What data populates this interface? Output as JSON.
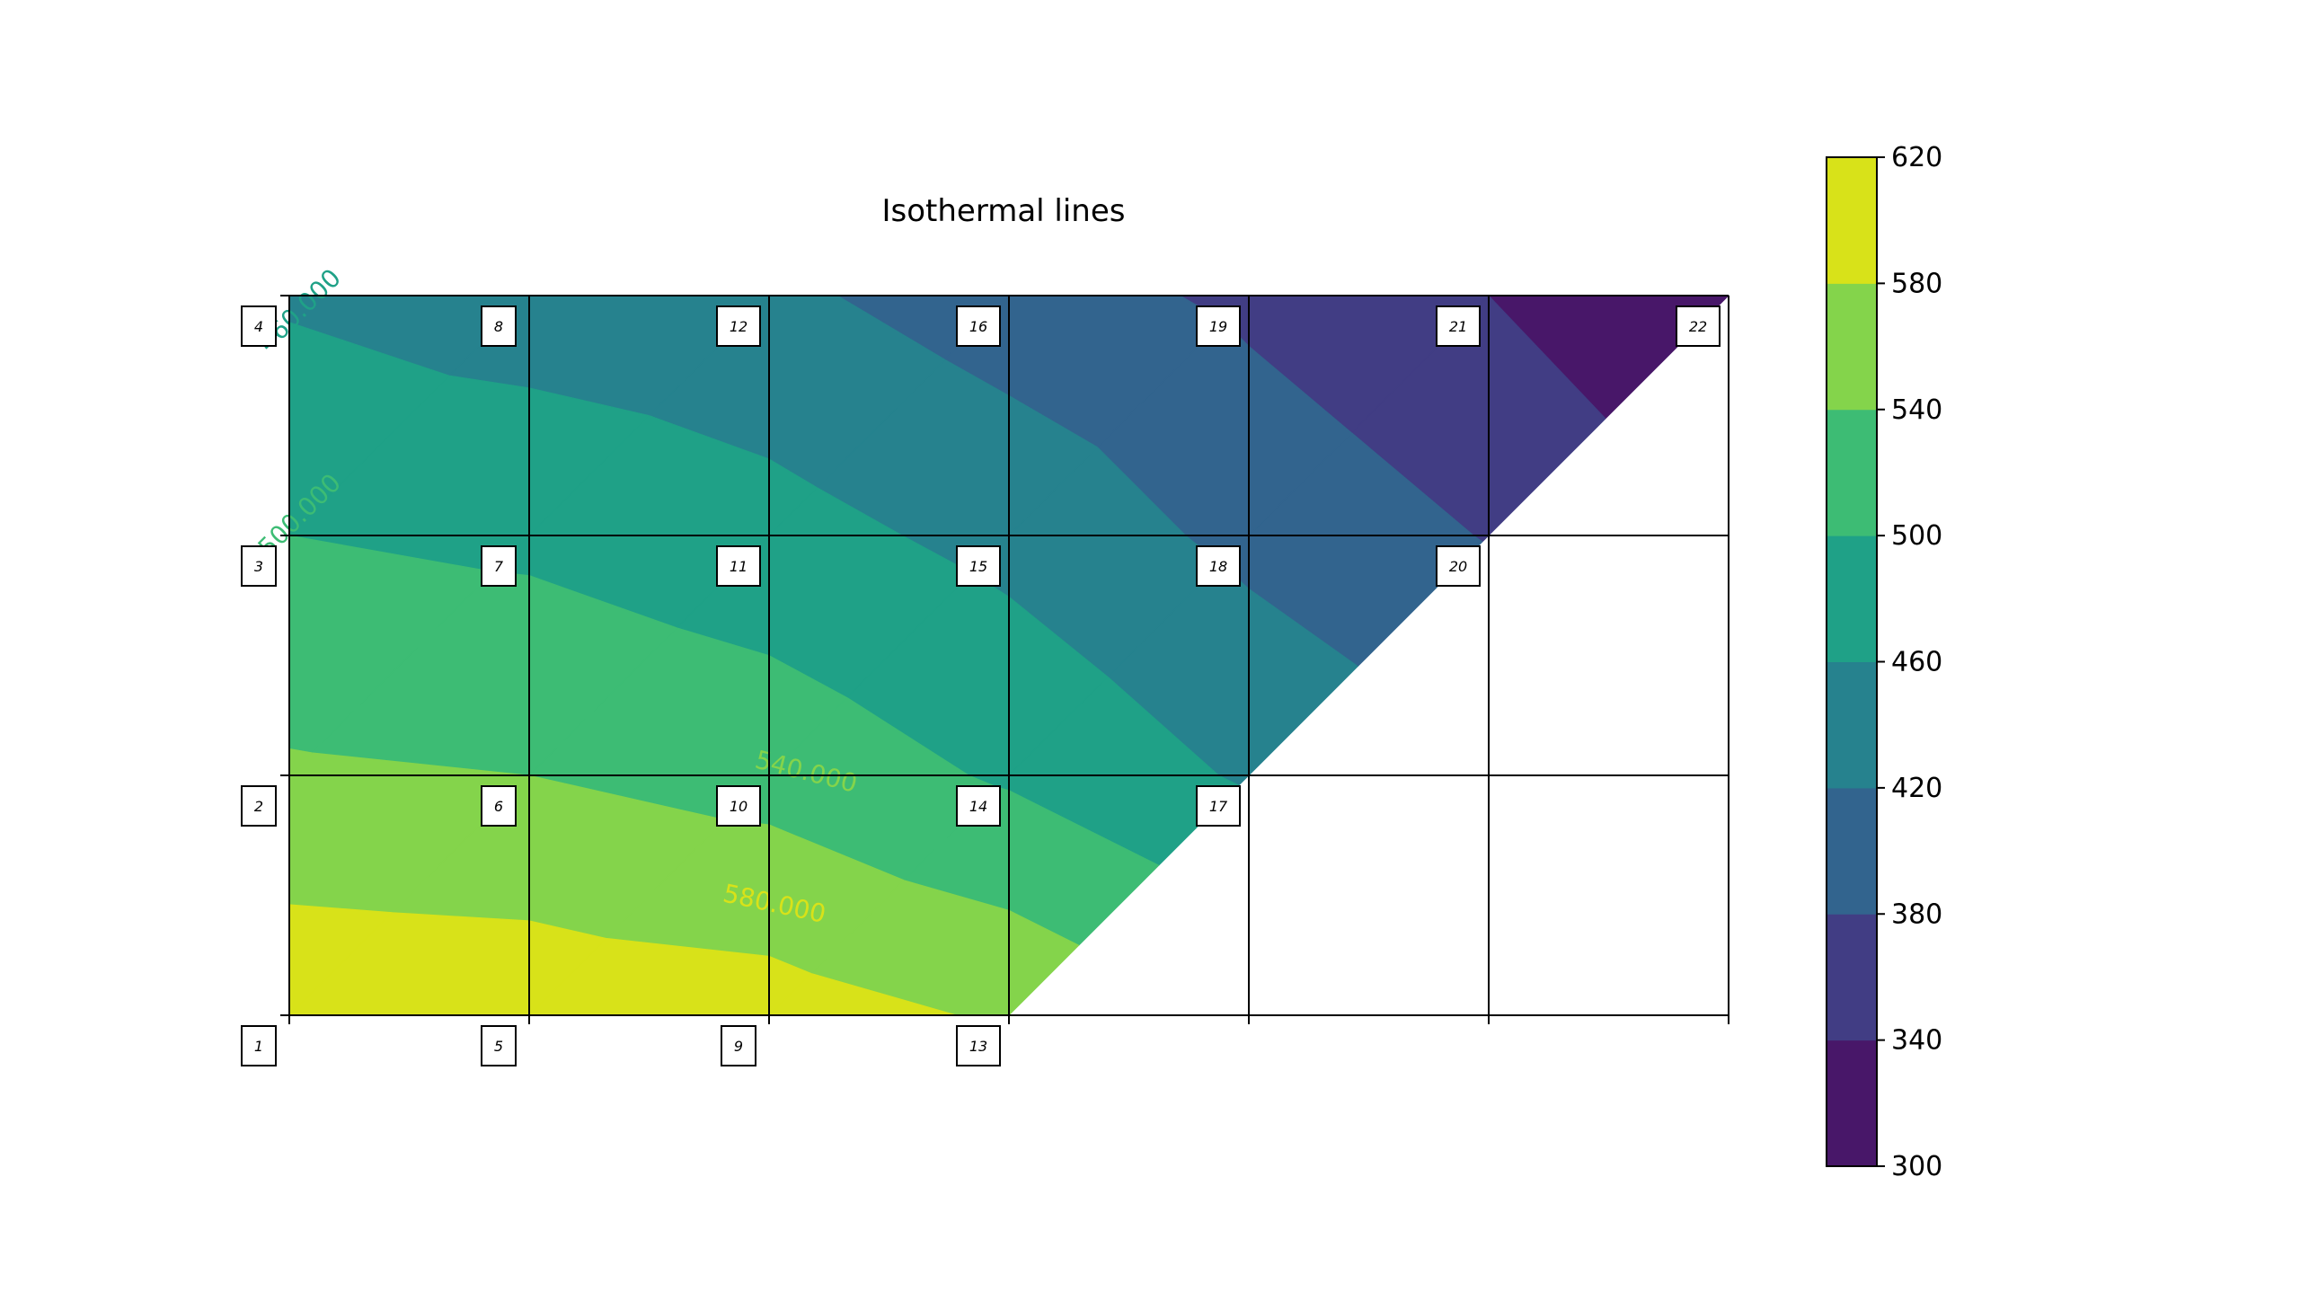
{
  "chart_data": {
    "type": "heatmap",
    "title": "Isothermal lines",
    "colorbar": {
      "levels": [
        300,
        340,
        380,
        420,
        460,
        500,
        540,
        580,
        620
      ],
      "tick_labels": [
        "300",
        "340",
        "380",
        "420",
        "460",
        "500",
        "540",
        "580",
        "620"
      ],
      "colors": [
        "#481769",
        "#413d84",
        "#32648e",
        "#26828e",
        "#1fa187",
        "#3dbc74",
        "#84d44b",
        "#d8e219"
      ]
    },
    "grid": {
      "x_columns": 6,
      "y_rows": 3,
      "mesh_lines": true
    },
    "nodes": [
      {
        "id": "1",
        "col": 0,
        "row": 0
      },
      {
        "id": "2",
        "col": 0,
        "row": 1
      },
      {
        "id": "3",
        "col": 0,
        "row": 2
      },
      {
        "id": "4",
        "col": 0,
        "row": 3
      },
      {
        "id": "5",
        "col": 1,
        "row": 0
      },
      {
        "id": "6",
        "col": 1,
        "row": 1
      },
      {
        "id": "7",
        "col": 1,
        "row": 2
      },
      {
        "id": "8",
        "col": 1,
        "row": 3
      },
      {
        "id": "9",
        "col": 2,
        "row": 0
      },
      {
        "id": "10",
        "col": 2,
        "row": 1
      },
      {
        "id": "11",
        "col": 2,
        "row": 2
      },
      {
        "id": "12",
        "col": 2,
        "row": 3
      },
      {
        "id": "13",
        "col": 3,
        "row": 0
      },
      {
        "id": "14",
        "col": 3,
        "row": 1
      },
      {
        "id": "15",
        "col": 3,
        "row": 2
      },
      {
        "id": "16",
        "col": 3,
        "row": 3
      },
      {
        "id": "17",
        "col": 4,
        "row": 1
      },
      {
        "id": "18",
        "col": 4,
        "row": 2
      },
      {
        "id": "19",
        "col": 4,
        "row": 3
      },
      {
        "id": "20",
        "col": 5,
        "row": 2
      },
      {
        "id": "21",
        "col": 5,
        "row": 3
      },
      {
        "id": "22",
        "col": 6,
        "row": 3
      }
    ],
    "node_temperatures": {
      "4": 455,
      "8": 440,
      "12": 428,
      "16": 400,
      "19": 372,
      "21": 340,
      "22": 300,
      "3": 500,
      "7": 492,
      "11": 475,
      "15": 448,
      "18": 410,
      "20": 378,
      "2": 545,
      "6": 540,
      "10": 525,
      "14": 495,
      "17": 455,
      "1": 610,
      "5": 606,
      "9": 598,
      "13": 575
    },
    "contour_labels": [
      {
        "text": "580.000",
        "level": 580
      },
      {
        "text": "540.000",
        "level": 540
      },
      {
        "text": "500.000",
        "level": 500
      },
      {
        "text": "460.000",
        "level": 460
      }
    ]
  }
}
